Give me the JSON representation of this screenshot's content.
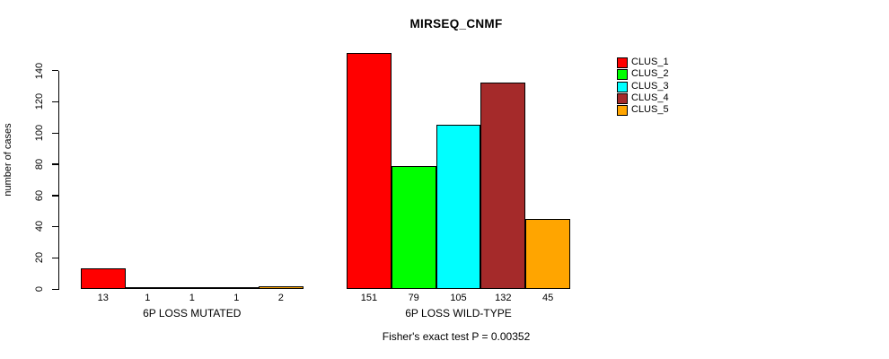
{
  "chart_data": {
    "type": "bar",
    "title": "MIRSEQ_CNMF",
    "ylabel": "number of cases",
    "footer": "Fisher's exact test P = 0.00352",
    "categories": [
      "6P LOSS MUTATED",
      "6P LOSS WILD-TYPE"
    ],
    "series": [
      {
        "name": "CLUS_1",
        "color": "#FF0000",
        "values": [
          13,
          151
        ]
      },
      {
        "name": "CLUS_2",
        "color": "#00FF00",
        "values": [
          1,
          79
        ]
      },
      {
        "name": "CLUS_3",
        "color": "#00FFFF",
        "values": [
          1,
          105
        ]
      },
      {
        "name": "CLUS_4",
        "color": "#A52A2A",
        "values": [
          1,
          132
        ]
      },
      {
        "name": "CLUS_5",
        "color": "#FFA500",
        "values": [
          2,
          45
        ]
      }
    ],
    "yticks": [
      0,
      20,
      40,
      60,
      80,
      100,
      120,
      140
    ],
    "ylim": [
      0,
      140
    ],
    "grid": "off",
    "legend_position": "right",
    "bar_value_labels": true,
    "axis_color": "#000000",
    "background_color": "#FFFFFF"
  }
}
